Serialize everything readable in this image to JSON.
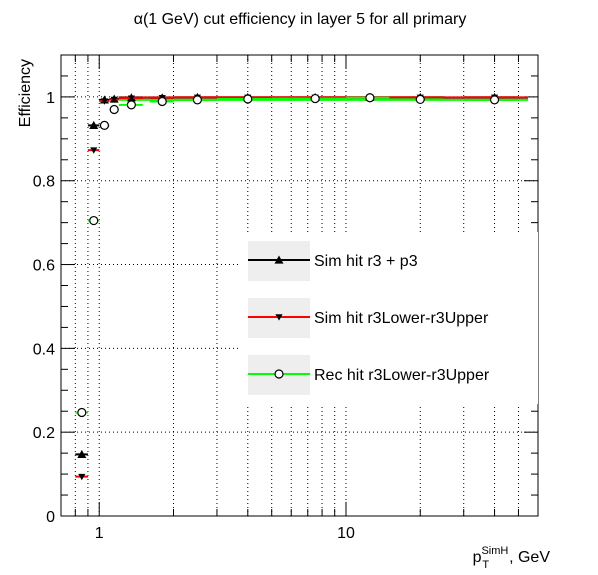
{
  "chart_data": {
    "type": "scatter",
    "title": "α(1 GeV) cut efficiency in layer 5 for all primary",
    "ylabel": "Efficiency",
    "xlabel": {
      "base": "p",
      "sub": "T",
      "sup": "SimH",
      "suffix": ", GeV"
    },
    "xscale": "log",
    "xlim": [
      0.7,
      60
    ],
    "ylim": [
      0,
      1.1
    ],
    "grid": true,
    "yticks": [
      0,
      0.2,
      0.4,
      0.6,
      0.8,
      1
    ],
    "ytick_labels": [
      "0",
      "0.2",
      "0.4",
      "0.6",
      "0.8",
      "1"
    ],
    "xticks": [
      1,
      10
    ],
    "xtick_labels": [
      "1",
      "10"
    ],
    "legend_position": "center-right",
    "series": [
      {
        "name": "Sim hit r3 + p3",
        "color": "#000000",
        "marker": "triangle-up",
        "x": [
          0.85,
          0.95,
          1.05,
          1.15,
          1.35,
          1.8,
          2.5,
          4,
          7.5,
          12.5,
          20,
          40
        ],
        "xerr_low": [
          0.05,
          0.05,
          0.05,
          0.05,
          0.15,
          0.2,
          0.5,
          1,
          2.5,
          2.5,
          5,
          10
        ],
        "xerr_high": [
          0.05,
          0.05,
          0.05,
          0.05,
          0.15,
          0.2,
          0.5,
          1,
          2.5,
          2.5,
          5,
          10
        ],
        "y": [
          0.147,
          0.932,
          0.993,
          0.995,
          0.998,
          0.998,
          0.999,
          0.999,
          0.999,
          0.999,
          0.999,
          0.999
        ],
        "line_y": 0.998
      },
      {
        "name": "Sim hit r3Lower-r3Upper",
        "color": "#ff0000",
        "marker": "triangle-down",
        "x": [
          0.85,
          0.95,
          1.05,
          1.15,
          1.35,
          1.8,
          2.5,
          4,
          7.5,
          12.5,
          20,
          40
        ],
        "xerr_low": [
          0.05,
          0.05,
          0.05,
          0.05,
          0.15,
          0.2,
          0.5,
          1,
          2.5,
          2.5,
          5,
          10
        ],
        "xerr_high": [
          0.05,
          0.05,
          0.05,
          0.05,
          0.15,
          0.2,
          0.5,
          1,
          2.5,
          2.5,
          5,
          10
        ],
        "y": [
          0.094,
          0.873,
          0.99,
          0.994,
          0.997,
          0.998,
          0.999,
          0.999,
          0.999,
          0.999,
          0.999,
          0.999
        ],
        "line_y": 0.999
      },
      {
        "name": "Rec hit r3Lower-r3Upper",
        "color": "#00ff00",
        "marker": "circle-open",
        "x": [
          0.85,
          0.95,
          1.05,
          1.15,
          1.35,
          1.8,
          2.5,
          4,
          7.5,
          12.5,
          20,
          40
        ],
        "xerr_low": [
          0.05,
          0.05,
          0.05,
          0.05,
          0.15,
          0.2,
          0.5,
          1,
          2.5,
          2.5,
          5,
          10
        ],
        "xerr_high": [
          0.05,
          0.05,
          0.05,
          0.05,
          0.15,
          0.2,
          0.5,
          1,
          2.5,
          2.5,
          5,
          10
        ],
        "y": [
          0.247,
          0.705,
          0.932,
          0.97,
          0.981,
          0.989,
          0.993,
          0.995,
          0.996,
          0.998,
          0.994,
          0.993
        ],
        "line_y": 0.993
      }
    ]
  }
}
